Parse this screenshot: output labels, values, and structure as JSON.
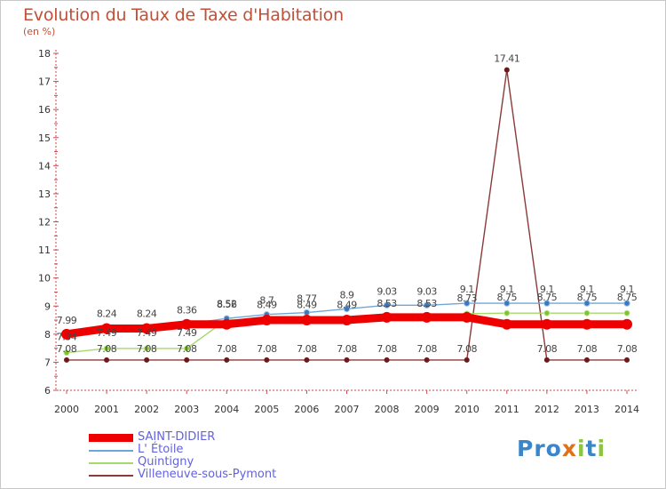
{
  "header": {
    "title": "Evolution du Taux de Taxe d'Habitation",
    "unit": "(en %)"
  },
  "brand": {
    "logo_p1": "Pro",
    "logo_x": "x",
    "logo_p2": "i",
    "logo_t": "t",
    "logo_i2": "i"
  },
  "chart_data": {
    "type": "line",
    "title": "Evolution du Taux de Taxe d'Habitation",
    "ylabel": "(en %)",
    "xlabel": "",
    "ylim": [
      6,
      18
    ],
    "yticks": [
      6,
      7,
      8,
      9,
      10,
      11,
      12,
      13,
      14,
      15,
      16,
      17,
      18
    ],
    "grid": false,
    "legend_position": "bottom-left",
    "categories": [
      "2000",
      "2001",
      "2002",
      "2003",
      "2004",
      "2005",
      "2006",
      "2007",
      "2008",
      "2009",
      "2010",
      "2011",
      "2012",
      "2013",
      "2014"
    ],
    "series": [
      {
        "name": "SAINT-DIDIER",
        "color": "#ee0000",
        "markerColor": "#ee0000",
        "values": [
          8.0,
          8.2,
          8.2,
          8.35,
          8.35,
          8.5,
          8.5,
          8.5,
          8.6,
          8.6,
          8.6,
          8.35,
          8.35,
          8.35,
          8.35
        ],
        "labels": [
          "",
          "",
          "",
          "",
          "",
          "",
          "",
          "",
          "",
          "",
          "",
          "",
          "",
          "",
          ""
        ]
      },
      {
        "name": "L' Étoile",
        "color": "#6fa6d6",
        "markerColor": "#3a78c0",
        "values": [
          7.99,
          8.24,
          8.24,
          8.36,
          8.56,
          8.7,
          8.77,
          8.9,
          9.03,
          9.03,
          9.1,
          9.1,
          9.1,
          9.1,
          9.1
        ],
        "labels": [
          "7.99",
          "8.24",
          "8.24",
          "8.36",
          "8.56",
          "8.7",
          "8.77",
          "8.9",
          "9.03",
          "9.03",
          "9.1",
          "9.1",
          "9.1",
          "9.1",
          "9.1"
        ]
      },
      {
        "name": "Quintigny",
        "color": "#a6d86a",
        "markerColor": "#7fc430",
        "values": [
          7.34,
          7.49,
          7.49,
          7.49,
          8.52,
          8.49,
          8.49,
          8.49,
          8.53,
          8.53,
          8.73,
          8.75,
          8.75,
          8.75,
          8.75
        ],
        "labels": [
          "7.34",
          "7.49",
          "7.49",
          "7.49",
          "8.52",
          "8.49",
          "8.49",
          "8.49",
          "8.53",
          "8.53",
          "8.73",
          "8.75",
          "8.75",
          "8.75",
          "8.75"
        ]
      },
      {
        "name": "Villeneuve-sous-Pymont",
        "color": "#8a3a3a",
        "markerColor": "#6a1a1a",
        "values": [
          7.08,
          7.08,
          7.08,
          7.08,
          7.08,
          7.08,
          7.08,
          7.08,
          7.08,
          7.08,
          7.08,
          17.41,
          7.08,
          7.08,
          7.08
        ],
        "labels": [
          "7.08",
          "7.08",
          "7.08",
          "7.08",
          "7.08",
          "7.08",
          "7.08",
          "7.08",
          "7.08",
          "7.08",
          "7.08",
          "17.41",
          "7.08",
          "7.08",
          "7.08"
        ]
      }
    ]
  }
}
